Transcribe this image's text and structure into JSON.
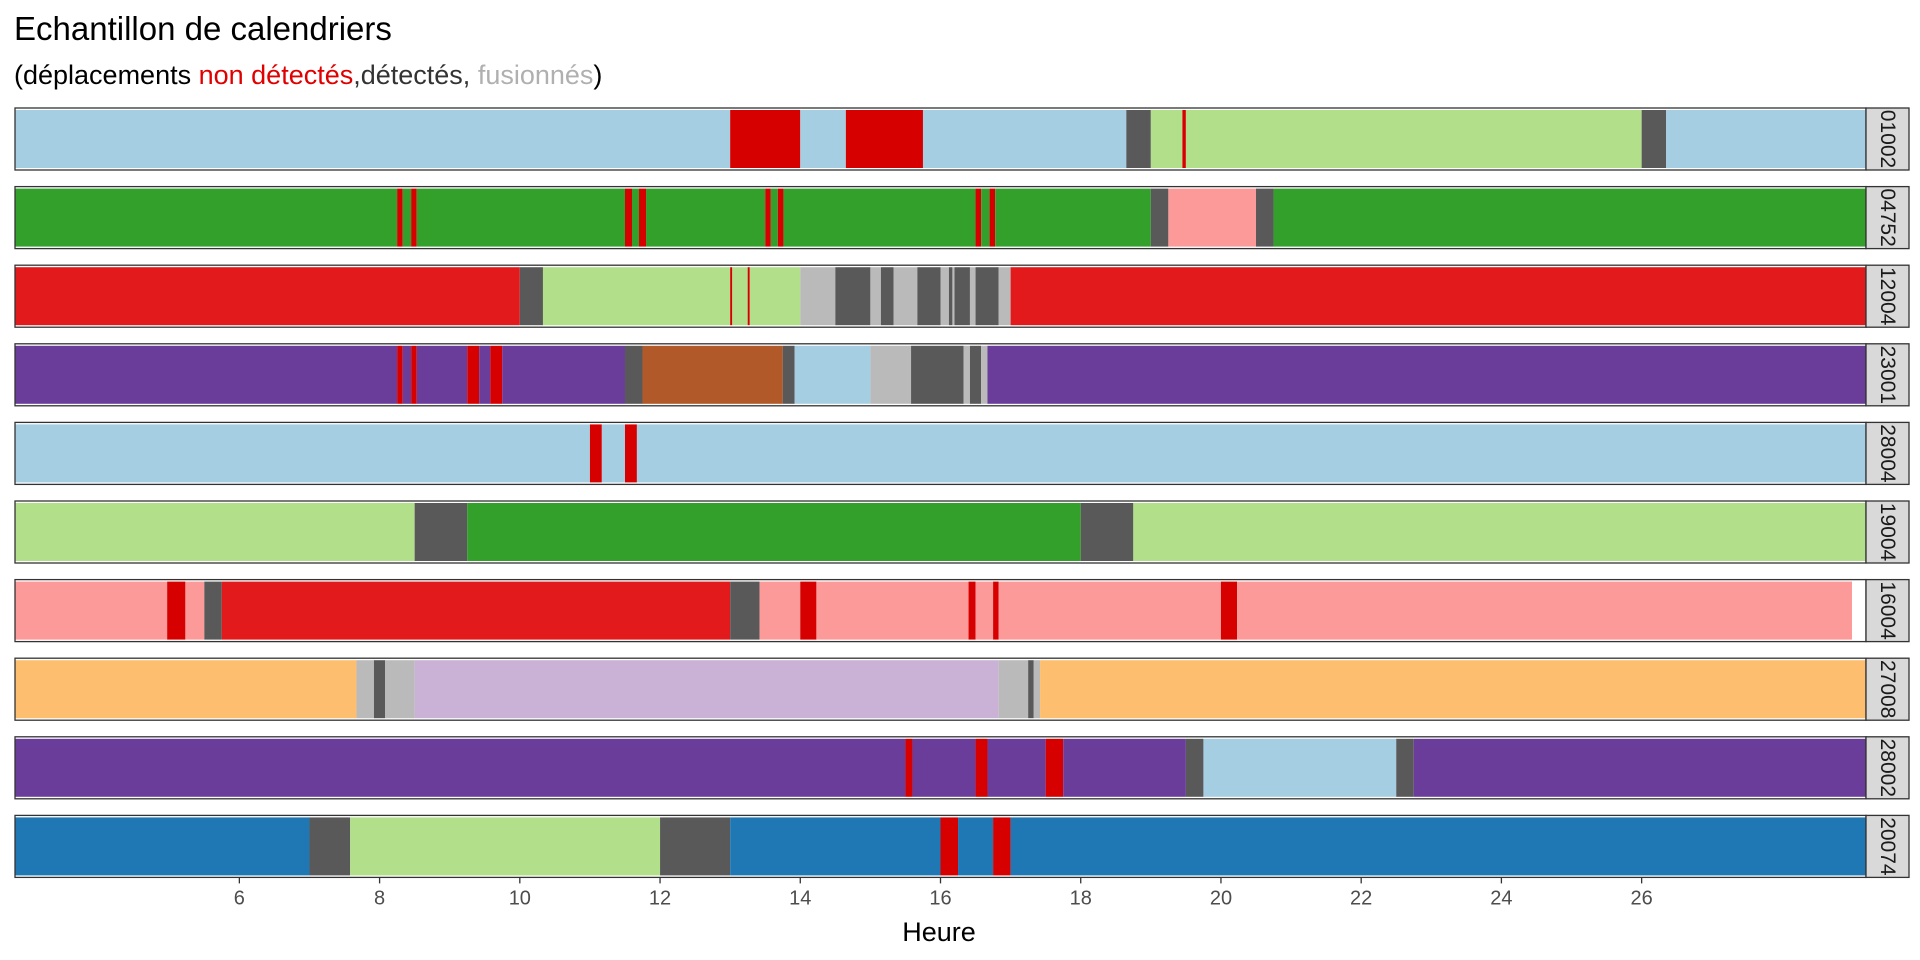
{
  "chart_data": {
    "type": "timeline",
    "title": "Echantillon de calendriers",
    "subtitle": {
      "open": "(déplacements ",
      "undetected": "non détectés",
      "detected": ",détectés, ",
      "merged": "fusionnés",
      "close": ")"
    },
    "xlabel": "Heure",
    "xlim": [
      2.8,
      29.2
    ],
    "xticks": [
      6,
      8,
      10,
      12,
      14,
      16,
      18,
      20,
      22,
      24,
      26
    ],
    "colors": {
      "undetected": "#d70000",
      "detected": "#595959",
      "merged": "#bababa",
      "title_text": "#000000",
      "undetected_text": "#e00000",
      "detected_text": "#333333",
      "merged_text": "#b0b0b0"
    },
    "rows": [
      {
        "label": "01002",
        "segments": [
          {
            "start": 2.8,
            "end": 13.0,
            "color": "#a6cee3"
          },
          {
            "start": 13.0,
            "end": 14.0,
            "color": "#d70000"
          },
          {
            "start": 14.0,
            "end": 14.65,
            "color": "#a6cee3"
          },
          {
            "start": 14.65,
            "end": 15.75,
            "color": "#d70000"
          },
          {
            "start": 15.75,
            "end": 18.65,
            "color": "#a6cee3"
          },
          {
            "start": 18.65,
            "end": 19.0,
            "color": "#595959"
          },
          {
            "start": 19.0,
            "end": 19.45,
            "color": "#b2df8a"
          },
          {
            "start": 19.45,
            "end": 19.5,
            "color": "#d70000"
          },
          {
            "start": 19.5,
            "end": 26.0,
            "color": "#b2df8a"
          },
          {
            "start": 26.0,
            "end": 26.35,
            "color": "#595959"
          },
          {
            "start": 26.35,
            "end": 29.2,
            "color": "#a6cee3"
          }
        ]
      },
      {
        "label": "04752",
        "segments": [
          {
            "start": 2.8,
            "end": 8.25,
            "color": "#33a02c"
          },
          {
            "start": 8.25,
            "end": 8.33,
            "color": "#d70000"
          },
          {
            "start": 8.33,
            "end": 8.45,
            "color": "#33a02c"
          },
          {
            "start": 8.45,
            "end": 8.53,
            "color": "#d70000"
          },
          {
            "start": 8.53,
            "end": 11.5,
            "color": "#33a02c"
          },
          {
            "start": 11.5,
            "end": 11.6,
            "color": "#d70000"
          },
          {
            "start": 11.6,
            "end": 11.7,
            "color": "#33a02c"
          },
          {
            "start": 11.7,
            "end": 11.8,
            "color": "#d70000"
          },
          {
            "start": 11.8,
            "end": 13.5,
            "color": "#33a02c"
          },
          {
            "start": 13.5,
            "end": 13.58,
            "color": "#d70000"
          },
          {
            "start": 13.58,
            "end": 13.68,
            "color": "#33a02c"
          },
          {
            "start": 13.68,
            "end": 13.76,
            "color": "#d70000"
          },
          {
            "start": 13.76,
            "end": 16.5,
            "color": "#33a02c"
          },
          {
            "start": 16.5,
            "end": 16.58,
            "color": "#d70000"
          },
          {
            "start": 16.58,
            "end": 16.7,
            "color": "#33a02c"
          },
          {
            "start": 16.7,
            "end": 16.78,
            "color": "#d70000"
          },
          {
            "start": 16.78,
            "end": 19.0,
            "color": "#33a02c"
          },
          {
            "start": 19.0,
            "end": 19.25,
            "color": "#595959"
          },
          {
            "start": 19.25,
            "end": 20.5,
            "color": "#fb9a99"
          },
          {
            "start": 20.5,
            "end": 20.75,
            "color": "#595959"
          },
          {
            "start": 20.75,
            "end": 29.2,
            "color": "#33a02c"
          }
        ]
      },
      {
        "label": "12004",
        "segments": [
          {
            "start": 2.8,
            "end": 10.0,
            "color": "#e31a1c"
          },
          {
            "start": 10.0,
            "end": 10.33,
            "color": "#595959"
          },
          {
            "start": 10.33,
            "end": 13.0,
            "color": "#b2df8a"
          },
          {
            "start": 13.0,
            "end": 13.03,
            "color": "#d70000"
          },
          {
            "start": 13.03,
            "end": 13.25,
            "color": "#b2df8a"
          },
          {
            "start": 13.25,
            "end": 13.28,
            "color": "#d70000"
          },
          {
            "start": 13.28,
            "end": 14.0,
            "color": "#b2df8a"
          },
          {
            "start": 14.0,
            "end": 14.5,
            "color": "#bababa"
          },
          {
            "start": 14.5,
            "end": 15.0,
            "color": "#595959"
          },
          {
            "start": 15.0,
            "end": 15.15,
            "color": "#bababa"
          },
          {
            "start": 15.15,
            "end": 15.33,
            "color": "#595959"
          },
          {
            "start": 15.33,
            "end": 15.67,
            "color": "#bababa"
          },
          {
            "start": 15.67,
            "end": 16.0,
            "color": "#595959"
          },
          {
            "start": 16.0,
            "end": 16.12,
            "color": "#bababa"
          },
          {
            "start": 16.12,
            "end": 16.17,
            "color": "#595959"
          },
          {
            "start": 16.17,
            "end": 16.2,
            "color": "#bababa"
          },
          {
            "start": 16.2,
            "end": 16.42,
            "color": "#595959"
          },
          {
            "start": 16.42,
            "end": 16.5,
            "color": "#bababa"
          },
          {
            "start": 16.5,
            "end": 16.83,
            "color": "#595959"
          },
          {
            "start": 16.83,
            "end": 17.0,
            "color": "#bababa"
          },
          {
            "start": 17.0,
            "end": 29.2,
            "color": "#e31a1c"
          }
        ]
      },
      {
        "label": "23001",
        "segments": [
          {
            "start": 2.8,
            "end": 8.25,
            "color": "#6a3d9a"
          },
          {
            "start": 8.25,
            "end": 8.33,
            "color": "#d70000"
          },
          {
            "start": 8.33,
            "end": 8.45,
            "color": "#6a3d9a"
          },
          {
            "start": 8.45,
            "end": 8.53,
            "color": "#d70000"
          },
          {
            "start": 8.53,
            "end": 9.25,
            "color": "#6a3d9a"
          },
          {
            "start": 9.25,
            "end": 9.42,
            "color": "#d70000"
          },
          {
            "start": 9.42,
            "end": 9.58,
            "color": "#6a3d9a"
          },
          {
            "start": 9.58,
            "end": 9.75,
            "color": "#d70000"
          },
          {
            "start": 9.75,
            "end": 11.5,
            "color": "#6a3d9a"
          },
          {
            "start": 11.5,
            "end": 11.75,
            "color": "#595959"
          },
          {
            "start": 11.75,
            "end": 13.75,
            "color": "#b15928"
          },
          {
            "start": 13.75,
            "end": 13.92,
            "color": "#595959"
          },
          {
            "start": 13.92,
            "end": 15.0,
            "color": "#a6cee3"
          },
          {
            "start": 15.0,
            "end": 15.58,
            "color": "#bababa"
          },
          {
            "start": 15.58,
            "end": 16.33,
            "color": "#595959"
          },
          {
            "start": 16.33,
            "end": 16.42,
            "color": "#bababa"
          },
          {
            "start": 16.42,
            "end": 16.58,
            "color": "#595959"
          },
          {
            "start": 16.58,
            "end": 16.67,
            "color": "#bababa"
          },
          {
            "start": 16.67,
            "end": 29.2,
            "color": "#6a3d9a"
          }
        ]
      },
      {
        "label": "28004",
        "segments": [
          {
            "start": 2.8,
            "end": 11.0,
            "color": "#a6cee3"
          },
          {
            "start": 11.0,
            "end": 11.17,
            "color": "#d70000"
          },
          {
            "start": 11.17,
            "end": 11.5,
            "color": "#a6cee3"
          },
          {
            "start": 11.5,
            "end": 11.67,
            "color": "#d70000"
          },
          {
            "start": 11.67,
            "end": 29.2,
            "color": "#a6cee3"
          }
        ]
      },
      {
        "label": "19004",
        "segments": [
          {
            "start": 2.8,
            "end": 8.5,
            "color": "#b2df8a"
          },
          {
            "start": 8.5,
            "end": 9.25,
            "color": "#595959"
          },
          {
            "start": 9.25,
            "end": 18.0,
            "color": "#33a02c"
          },
          {
            "start": 18.0,
            "end": 18.75,
            "color": "#595959"
          },
          {
            "start": 18.75,
            "end": 29.2,
            "color": "#b2df8a"
          }
        ]
      },
      {
        "label": "16004",
        "segments": [
          {
            "start": 2.8,
            "end": 4.97,
            "color": "#fb9a99"
          },
          {
            "start": 4.97,
            "end": 5.23,
            "color": "#d70000"
          },
          {
            "start": 5.23,
            "end": 5.5,
            "color": "#fb9a99"
          },
          {
            "start": 5.5,
            "end": 5.75,
            "color": "#595959"
          },
          {
            "start": 5.75,
            "end": 13.0,
            "color": "#e31a1c"
          },
          {
            "start": 13.0,
            "end": 13.42,
            "color": "#595959"
          },
          {
            "start": 13.42,
            "end": 14.0,
            "color": "#fb9a99"
          },
          {
            "start": 14.0,
            "end": 14.23,
            "color": "#d70000"
          },
          {
            "start": 14.23,
            "end": 16.4,
            "color": "#fb9a99"
          },
          {
            "start": 16.4,
            "end": 16.5,
            "color": "#d70000"
          },
          {
            "start": 16.5,
            "end": 16.75,
            "color": "#fb9a99"
          },
          {
            "start": 16.75,
            "end": 16.83,
            "color": "#d70000"
          },
          {
            "start": 16.83,
            "end": 20.0,
            "color": "#fb9a99"
          },
          {
            "start": 20.0,
            "end": 20.23,
            "color": "#d70000"
          },
          {
            "start": 20.23,
            "end": 29.0,
            "color": "#fb9a99"
          }
        ]
      },
      {
        "label": "27008",
        "segments": [
          {
            "start": 2.8,
            "end": 7.67,
            "color": "#fdbf6f"
          },
          {
            "start": 7.67,
            "end": 7.92,
            "color": "#bababa"
          },
          {
            "start": 7.92,
            "end": 8.08,
            "color": "#595959"
          },
          {
            "start": 8.08,
            "end": 8.5,
            "color": "#bababa"
          },
          {
            "start": 8.5,
            "end": 16.83,
            "color": "#cab2d6"
          },
          {
            "start": 16.83,
            "end": 17.25,
            "color": "#bababa"
          },
          {
            "start": 17.25,
            "end": 17.33,
            "color": "#595959"
          },
          {
            "start": 17.33,
            "end": 17.42,
            "color": "#bababa"
          },
          {
            "start": 17.42,
            "end": 29.2,
            "color": "#fdbf6f"
          }
        ]
      },
      {
        "label": "28002",
        "segments": [
          {
            "start": 2.8,
            "end": 15.5,
            "color": "#6a3d9a"
          },
          {
            "start": 15.5,
            "end": 15.6,
            "color": "#d70000"
          },
          {
            "start": 15.6,
            "end": 16.5,
            "color": "#6a3d9a"
          },
          {
            "start": 16.5,
            "end": 16.67,
            "color": "#d70000"
          },
          {
            "start": 16.67,
            "end": 17.5,
            "color": "#6a3d9a"
          },
          {
            "start": 17.5,
            "end": 17.75,
            "color": "#d70000"
          },
          {
            "start": 17.75,
            "end": 19.5,
            "color": "#6a3d9a"
          },
          {
            "start": 19.5,
            "end": 19.75,
            "color": "#595959"
          },
          {
            "start": 19.75,
            "end": 22.5,
            "color": "#a6cee3"
          },
          {
            "start": 22.5,
            "end": 22.75,
            "color": "#595959"
          },
          {
            "start": 22.75,
            "end": 29.2,
            "color": "#6a3d9a"
          }
        ]
      },
      {
        "label": "20074",
        "segments": [
          {
            "start": 2.8,
            "end": 7.0,
            "color": "#1f78b4"
          },
          {
            "start": 7.0,
            "end": 7.58,
            "color": "#595959"
          },
          {
            "start": 7.58,
            "end": 12.0,
            "color": "#b2df8a"
          },
          {
            "start": 12.0,
            "end": 13.0,
            "color": "#595959"
          },
          {
            "start": 13.0,
            "end": 16.0,
            "color": "#1f78b4"
          },
          {
            "start": 16.0,
            "end": 16.25,
            "color": "#d70000"
          },
          {
            "start": 16.25,
            "end": 16.75,
            "color": "#1f78b4"
          },
          {
            "start": 16.75,
            "end": 17.0,
            "color": "#d70000"
          },
          {
            "start": 17.0,
            "end": 29.2,
            "color": "#1f78b4"
          }
        ]
      }
    ]
  }
}
